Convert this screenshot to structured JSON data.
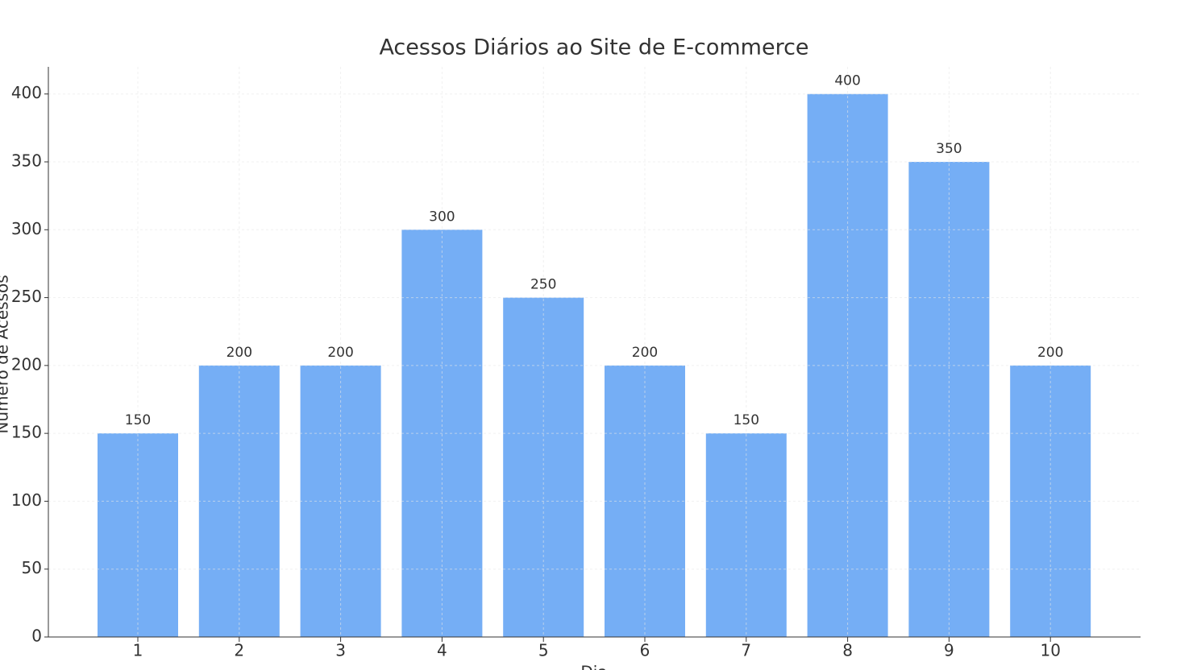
{
  "chart_data": {
    "type": "bar",
    "title": "Acessos Diários ao Site de E-commerce",
    "x_label": "Dia",
    "y_label": "Número de Acessos",
    "categories": [
      "1",
      "2",
      "3",
      "4",
      "5",
      "6",
      "7",
      "8",
      "9",
      "10"
    ],
    "values": [
      150,
      200,
      200,
      300,
      250,
      200,
      150,
      400,
      350,
      200
    ],
    "color": "#75aef5",
    "ylim": [
      0,
      420
    ],
    "yticks": [
      0,
      50,
      100,
      150,
      200,
      250,
      300,
      350,
      400
    ],
    "grid": true
  }
}
